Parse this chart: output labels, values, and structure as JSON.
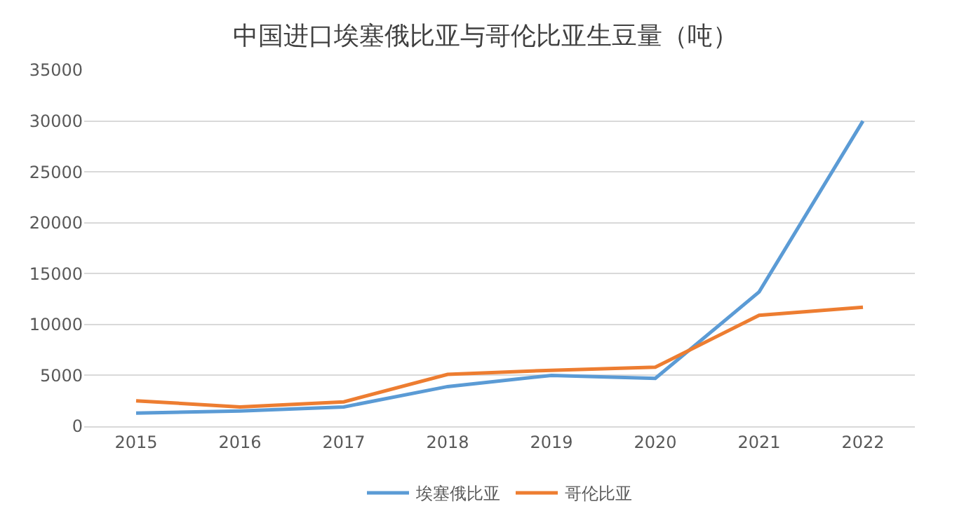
{
  "chart_data": {
    "type": "line",
    "title": "中国进口埃塞俄比亚与哥伦比亚生豆量（吨）",
    "categories": [
      "2015",
      "2016",
      "2017",
      "2018",
      "2019",
      "2020",
      "2021",
      "2022"
    ],
    "series": [
      {
        "name": "埃塞俄比亚",
        "color": "#5b9bd5",
        "values": [
          1300,
          1500,
          1900,
          3900,
          5000,
          4700,
          13200,
          30000
        ]
      },
      {
        "name": "哥伦比亚",
        "color": "#ed7d31",
        "values": [
          2500,
          1900,
          2400,
          5100,
          5500,
          5800,
          10900,
          11700
        ]
      }
    ],
    "ylim": [
      0,
      35000
    ],
    "yticks": [
      0,
      5000,
      10000,
      15000,
      20000,
      25000,
      30000,
      35000
    ],
    "grid": "y",
    "legend": "bottom",
    "marker": "none",
    "line_style": "solid"
  }
}
